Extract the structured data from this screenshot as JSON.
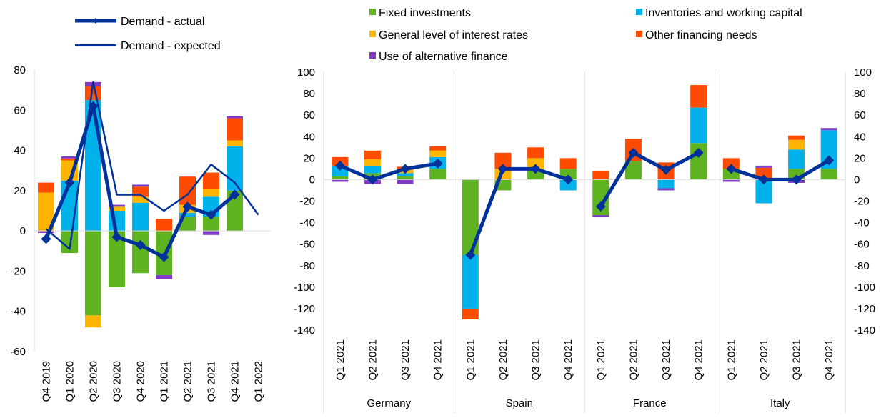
{
  "colors": {
    "fixed": "#5fb320",
    "inventories": "#00b1ea",
    "interest": "#ffb400",
    "other": "#ff4b00",
    "alternative": "#8139c6",
    "line": "#003299",
    "axis": "#d9d9d9"
  },
  "legend": {
    "actual": "Demand - actual",
    "expected": "Demand - expected",
    "fixed": "Fixed investments",
    "inventories": "Inventories and working capital",
    "interest": "General level of interest rates",
    "other": "Other financing needs",
    "alternative": "Use of alternative finance"
  },
  "chart_data": [
    {
      "type": "bar",
      "stacked": true,
      "ylim": [
        -60,
        80
      ],
      "yticks": [
        80,
        60,
        40,
        20,
        0,
        -20,
        -40,
        -60
      ],
      "categories": [
        "Q4 2019",
        "Q1 2020",
        "Q2 2020",
        "Q3 2020",
        "Q4 2020",
        "Q1 2021",
        "Q2 2021",
        "Q3 2021",
        "Q4 2021",
        "Q1 2022"
      ],
      "series": [
        {
          "key": "fixed",
          "name": "Fixed investments",
          "values": [
            0,
            -11,
            -42,
            -28,
            -21,
            -22,
            7,
            7,
            20,
            null
          ]
        },
        {
          "key": "inventories",
          "name": "Inventories and working capital",
          "values": [
            0,
            25,
            65,
            10,
            14,
            0,
            2,
            10,
            22,
            null
          ]
        },
        {
          "key": "interest",
          "name": "General level of interest rates",
          "values": [
            19,
            10,
            -6,
            2,
            3,
            0,
            4,
            4,
            3,
            null
          ]
        },
        {
          "key": "other",
          "name": "Other financing needs",
          "values": [
            5,
            1,
            7,
            0,
            5,
            6,
            14,
            8,
            11,
            null
          ]
        },
        {
          "key": "alternative",
          "name": "Use of alternative finance",
          "values": [
            -1,
            1,
            2,
            1,
            1,
            -2,
            0,
            -2,
            1,
            null
          ]
        }
      ],
      "lines": [
        {
          "key": "actual",
          "name": "Demand - actual",
          "values": [
            -4,
            24,
            62,
            -3,
            -7,
            -13,
            12,
            8,
            18,
            null
          ]
        },
        {
          "key": "expected",
          "name": "Demand - expected",
          "values": [
            1,
            -9,
            74,
            18,
            18,
            10,
            18,
            33,
            24,
            8
          ]
        }
      ]
    },
    {
      "type": "bar",
      "stacked": true,
      "ylim": [
        -140,
        100
      ],
      "yticks": [
        100,
        80,
        60,
        40,
        20,
        0,
        -20,
        -40,
        -60,
        -80,
        -100,
        -120,
        -140
      ],
      "groups": [
        {
          "label": "Germany",
          "categories": [
            "Q1 2021",
            "Q2 2021",
            "Q3 2021",
            "Q4 2021"
          ]
        },
        {
          "label": "Spain",
          "categories": [
            "Q1 2021",
            "Q2 2021",
            "Q3 2021",
            "Q4 2021"
          ]
        },
        {
          "label": "France",
          "categories": [
            "Q1 2021",
            "Q2 2021",
            "Q3 2021",
            "Q4 2021"
          ]
        },
        {
          "label": "Italy",
          "categories": [
            "Q1 2021",
            "Q2 2021",
            "Q3 2021",
            "Q4 2021"
          ]
        }
      ],
      "series": [
        {
          "key": "fixed",
          "name": "Fixed investments",
          "values": [
            3,
            6,
            3,
            10,
            -70,
            -10,
            10,
            10,
            -33,
            17,
            0,
            34,
            10,
            0,
            10,
            10
          ]
        },
        {
          "key": "inventories",
          "name": "Inventories and working capital",
          "values": [
            10,
            7,
            3,
            11,
            -50,
            0,
            0,
            -10,
            0,
            0,
            -8,
            33,
            0,
            -22,
            18,
            36
          ]
        },
        {
          "key": "interest",
          "name": "General level of interest rates",
          "values": [
            0,
            6,
            3,
            6,
            0,
            10,
            10,
            0,
            0,
            0,
            0,
            0,
            0,
            0,
            9,
            0
          ]
        },
        {
          "key": "other",
          "name": "Other financing needs",
          "values": [
            8,
            8,
            3,
            4,
            -10,
            15,
            10,
            10,
            8,
            21,
            16,
            21,
            10,
            11,
            4,
            0
          ]
        },
        {
          "key": "alternative",
          "name": "Use of alternative finance",
          "values": [
            -2,
            -4,
            -4,
            0,
            0,
            0,
            0,
            0,
            -2,
            0,
            -2,
            0,
            -2,
            2,
            -3,
            2
          ]
        }
      ],
      "lines": [
        {
          "key": "actual",
          "name": "Demand - actual",
          "values": [
            13,
            0,
            10,
            15,
            -70,
            10,
            10,
            0,
            -25,
            25,
            9,
            25,
            10,
            0,
            0,
            18
          ]
        }
      ]
    }
  ]
}
